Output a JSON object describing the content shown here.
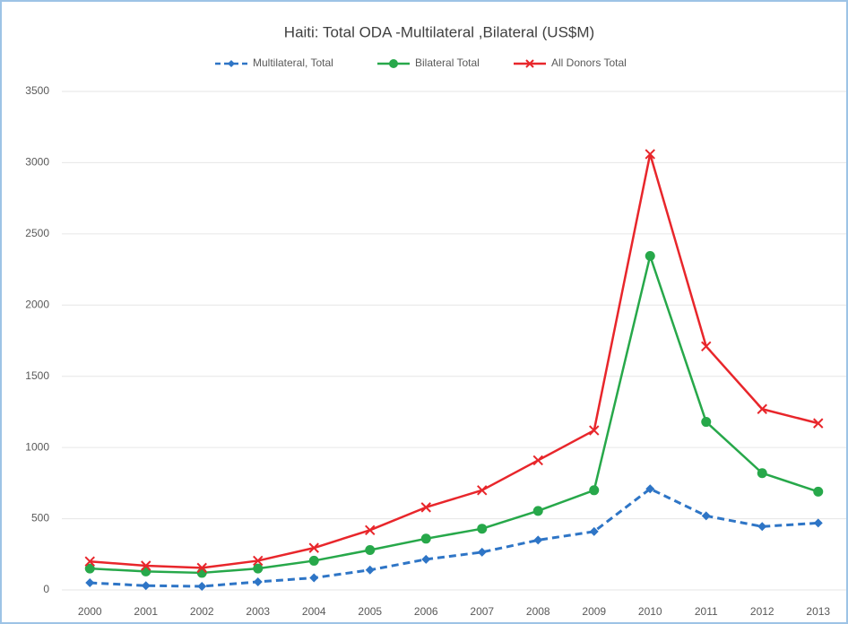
{
  "chart_data": {
    "type": "line",
    "title": "Haiti: Total ODA -Multilateral ,Bilateral (US$M)",
    "categories": [
      "2000",
      "2001",
      "2002",
      "2003",
      "2004",
      "2005",
      "2006",
      "2007",
      "2008",
      "2009",
      "2010",
      "2011",
      "2012",
      "2013"
    ],
    "series": [
      {
        "name": "Multilateral, Total",
        "color": "#2e75c6",
        "marker": "diamond",
        "dashed": true,
        "values": [
          50,
          30,
          25,
          57,
          85,
          140,
          215,
          265,
          350,
          410,
          710,
          520,
          445,
          470
        ]
      },
      {
        "name": "Bilateral Total",
        "color": "#27a84a",
        "marker": "circle",
        "dashed": false,
        "values": [
          150,
          130,
          120,
          150,
          205,
          280,
          360,
          430,
          555,
          700,
          2345,
          1180,
          820,
          690
        ]
      },
      {
        "name": "All Donors Total",
        "color": "#e8262b",
        "marker": "x",
        "dashed": false,
        "values": [
          200,
          170,
          155,
          205,
          295,
          420,
          580,
          700,
          910,
          1120,
          3060,
          1710,
          1270,
          1170
        ]
      }
    ],
    "ylim": [
      0,
      3500
    ],
    "yticks": [
      0,
      500,
      1000,
      1500,
      2000,
      2500,
      3000,
      3500
    ],
    "grid": true,
    "legend": "top"
  }
}
